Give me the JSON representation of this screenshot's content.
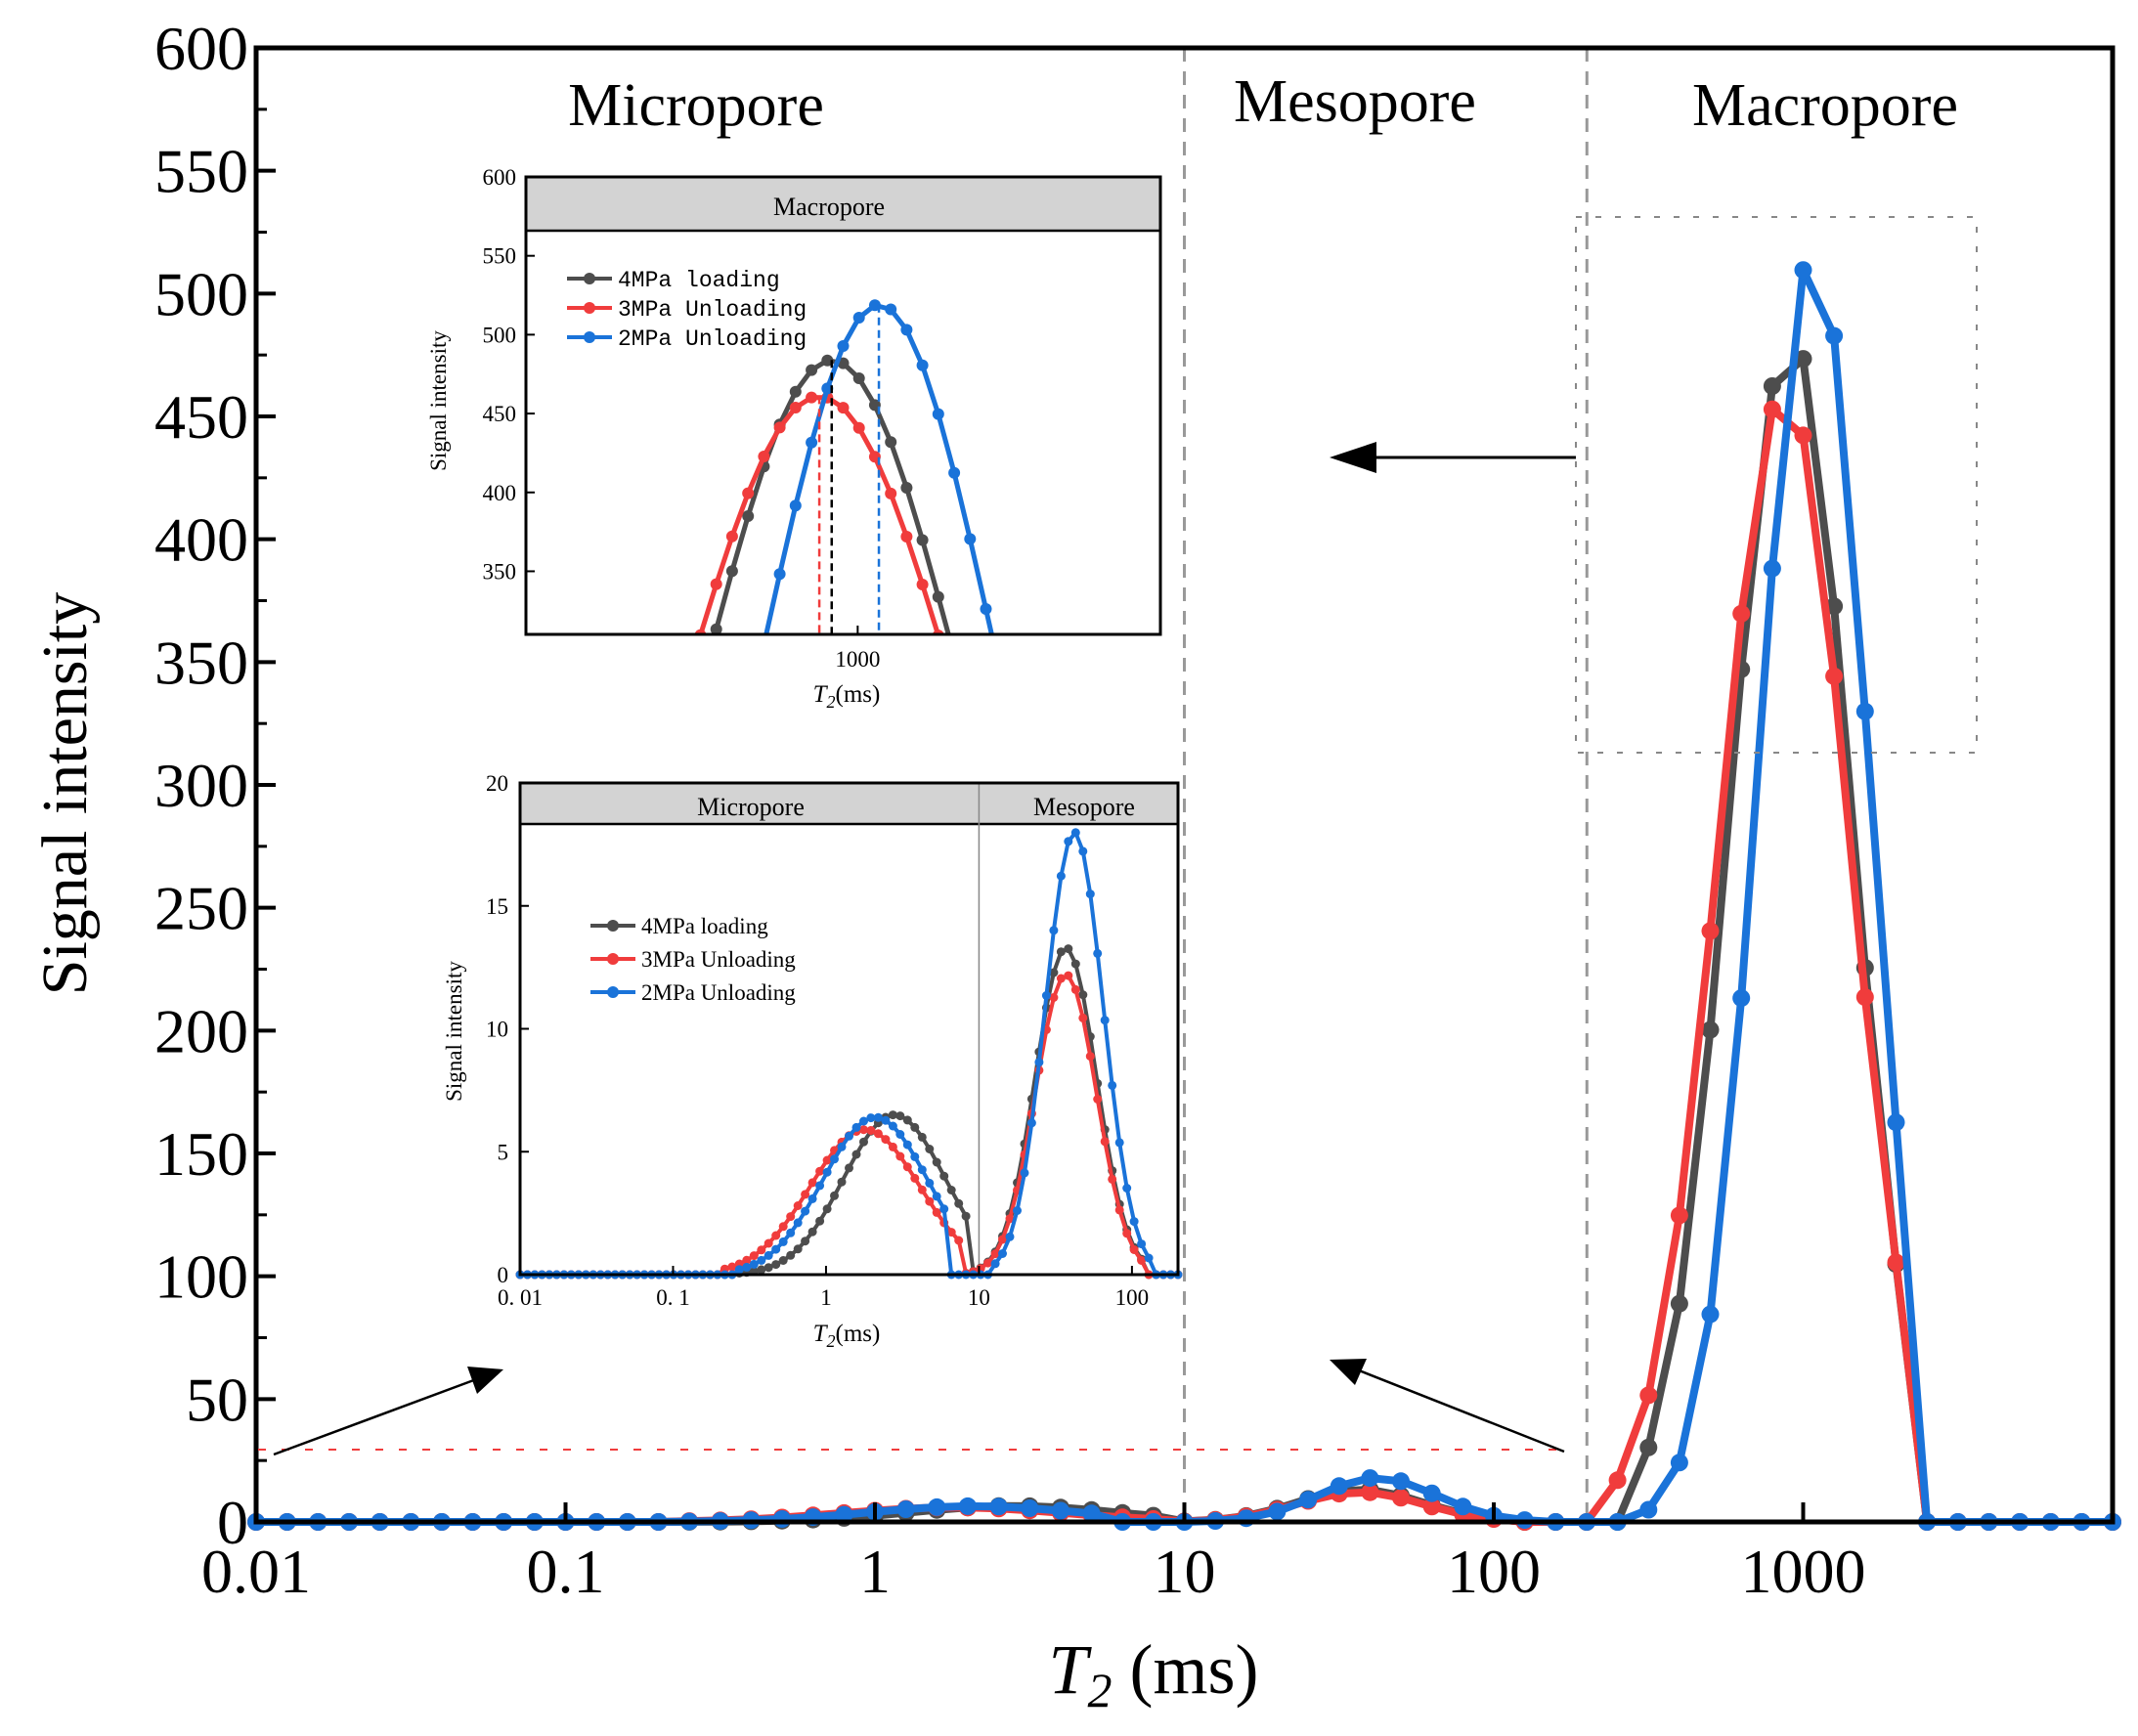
{
  "colors": {
    "loading_4MPa": "#4d4d4d",
    "unloading_3MPa": "#f03c3c",
    "unloading_2MPa": "#1a73d9",
    "region_header_bg": "#d3d3d3",
    "boundary_line": "#999999"
  },
  "chart_data": [
    {
      "id": "main",
      "type": "line",
      "xscale": "log",
      "xlabel_main": "T",
      "xlabel_sub": "2",
      "xlabel_unit": " (ms)",
      "ylabel": "Signal intensity",
      "xlim": [
        0.01,
        10000
      ],
      "ylim": [
        0,
        600
      ],
      "x_ticks": [
        0.01,
        0.1,
        1,
        10,
        100,
        1000
      ],
      "x_tick_labels": [
        "0.01",
        "0.1",
        "1",
        "10",
        "100",
        "1000"
      ],
      "y_ticks": [
        0,
        50,
        100,
        150,
        200,
        250,
        300,
        350,
        400,
        450,
        500,
        550,
        600
      ],
      "y_tick_labels": [
        "0",
        "50",
        "100",
        "150",
        "200",
        "250",
        "300",
        "350",
        "400",
        "450",
        "500",
        "550",
        "600"
      ],
      "boundaries_ms": [
        10,
        200
      ],
      "region_labels": [
        "Micropore",
        "Mesopore",
        "Macropore"
      ],
      "series": [
        {
          "name": "4MPa loading",
          "peaks": [
            {
              "center": 2.8,
              "sigma": 0.33,
              "amp": 6.5,
              "lo": 0.25,
              "hi": 9
            },
            {
              "center": 37,
              "sigma": 0.2,
              "amp": 13.3,
              "lo": 9,
              "hi": 125
            },
            {
              "center": 910,
              "sigma": 0.195,
              "amp": 484,
              "lo": 260,
              "hi": 2150
            }
          ]
        },
        {
          "name": "3MPa Unloading",
          "peaks": [
            {
              "center": 1.8,
              "sigma": 0.36,
              "amp": 5.9,
              "lo": 0.2,
              "hi": 8
            },
            {
              "center": 37,
              "sigma": 0.2,
              "amp": 12.2,
              "lo": 8,
              "hi": 120
            },
            {
              "center": 870,
              "sigma": 0.21,
              "amp": 461,
              "lo": 230,
              "hi": 2100
            }
          ]
        },
        {
          "name": "2MPa Unloading",
          "peaks": [
            {
              "center": 2.1,
              "sigma": 0.34,
              "amp": 6.4,
              "lo": 0.25,
              "hi": 6
            },
            {
              "center": 42,
              "sigma": 0.19,
              "amp": 18,
              "lo": 12,
              "hi": 140
            },
            {
              "center": 1080,
              "sigma": 0.175,
              "amp": 519,
              "lo": 310,
              "hi": 2250
            }
          ]
        }
      ]
    },
    {
      "id": "inset_macro",
      "type": "line",
      "xscale": "log",
      "header": "Macropore",
      "ylabel": "Signal intensity",
      "xlabel_main": "T",
      "xlabel_sub": "2",
      "xlabel_unit": "(ms)",
      "xlim": [
        300,
        3000
      ],
      "ylim": [
        310,
        600
      ],
      "x_ticks": [
        1000
      ],
      "x_tick_labels": [
        "1000"
      ],
      "y_ticks": [
        350,
        400,
        450,
        500,
        550,
        600
      ],
      "y_tick_labels": [
        "350",
        "400",
        "450",
        "500",
        "550",
        "600"
      ],
      "peak_markers_ms": [
        910,
        870,
        1080
      ]
    },
    {
      "id": "inset_micro_meso",
      "type": "line",
      "xscale": "log",
      "header_left": "Micropore",
      "header_right": "Mesopore",
      "divider_ms": 10,
      "ylabel": "Signal intensity",
      "xlabel_main": "T",
      "xlabel_sub": "2",
      "xlabel_unit": "(ms)",
      "xlim": [
        0.01,
        200
      ],
      "ylim": [
        0,
        20
      ],
      "x_ticks": [
        0.01,
        0.1,
        1,
        10,
        100
      ],
      "x_tick_labels": [
        "0. 01",
        "0. 1",
        "1",
        "10",
        "100"
      ],
      "y_ticks": [
        0,
        5,
        10,
        15,
        20
      ],
      "y_tick_labels": [
        "0",
        "5",
        "10",
        "15",
        "20"
      ]
    }
  ],
  "legend": {
    "entries": [
      "4MPa  loading",
      "3MPa Unloading",
      "2MPa Unloading"
    ]
  }
}
